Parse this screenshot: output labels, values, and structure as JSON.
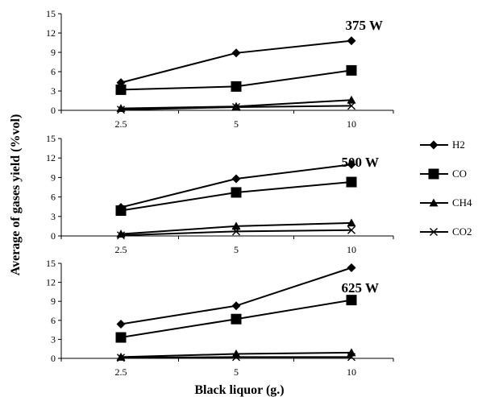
{
  "chart_data": {
    "type": "line",
    "ylabel": "Average of gases yield (%vol)",
    "xlabel": "Black liquor (g.)",
    "categories": [
      "2.5",
      "5",
      "10"
    ],
    "yticks": [
      0,
      3,
      6,
      9,
      12,
      15
    ],
    "ylim": [
      0,
      15
    ],
    "grid": false,
    "legend_position": "right",
    "legend": [
      "H2",
      "CO",
      "CH4",
      "CO2"
    ],
    "panels": [
      {
        "title": "375 W",
        "series": [
          {
            "name": "H2",
            "marker": "diamond",
            "values": [
              4.3,
              8.9,
              10.8
            ]
          },
          {
            "name": "CO",
            "marker": "square",
            "values": [
              3.2,
              3.7,
              6.2
            ]
          },
          {
            "name": "CH4",
            "marker": "triangle",
            "values": [
              0.3,
              0.6,
              1.6
            ]
          },
          {
            "name": "CO2",
            "marker": "x",
            "values": [
              0.1,
              0.5,
              0.7
            ]
          }
        ]
      },
      {
        "title": "500 W",
        "series": [
          {
            "name": "H2",
            "marker": "diamond",
            "values": [
              4.4,
              8.8,
              11.0
            ]
          },
          {
            "name": "CO",
            "marker": "square",
            "values": [
              3.9,
              6.7,
              8.3
            ]
          },
          {
            "name": "CH4",
            "marker": "triangle",
            "values": [
              0.3,
              1.5,
              2.0
            ]
          },
          {
            "name": "CO2",
            "marker": "x",
            "values": [
              0.1,
              0.7,
              0.9
            ]
          }
        ]
      },
      {
        "title": "625 W",
        "series": [
          {
            "name": "H2",
            "marker": "diamond",
            "values": [
              5.4,
              8.3,
              14.3
            ]
          },
          {
            "name": "CO",
            "marker": "square",
            "values": [
              3.3,
              6.2,
              9.2
            ]
          },
          {
            "name": "CH4",
            "marker": "triangle",
            "values": [
              0.2,
              0.7,
              0.9
            ]
          },
          {
            "name": "CO2",
            "marker": "x",
            "values": [
              0.1,
              0.2,
              0.2
            ]
          }
        ]
      }
    ]
  }
}
